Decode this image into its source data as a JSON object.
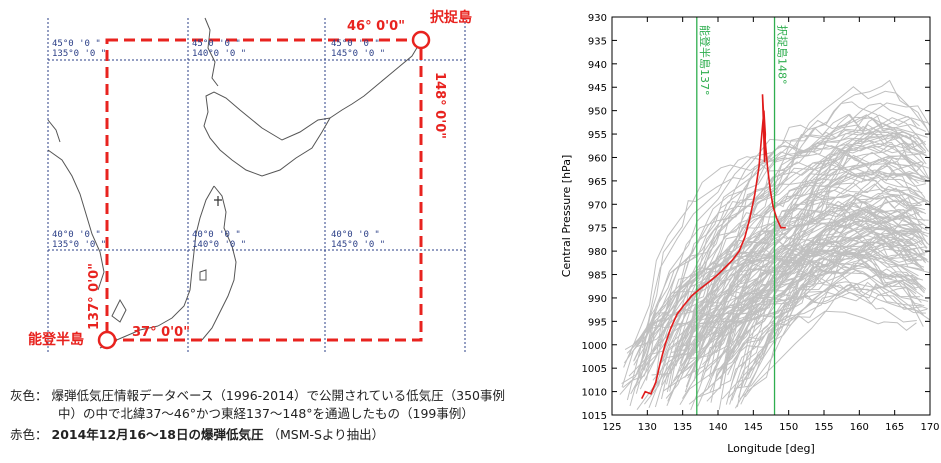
{
  "map": {
    "grid_labels": [
      {
        "lat": "45°0 '0 \"",
        "lon": "135°0 '0 \""
      },
      {
        "lat": "45°0 '0 \"",
        "lon": "140°0 '0 \""
      },
      {
        "lat": "45°0 '0 \"",
        "lon": "145°0 '0 \""
      },
      {
        "lat": "40°0 '0 \"",
        "lon": "135°0 '0 \""
      },
      {
        "lat": "40°0 '0 \"",
        "lon": "140°0 '0 \""
      },
      {
        "lat": "40°0 '0 \"",
        "lon": "145°0 '0 \""
      }
    ],
    "box_labels": {
      "north": "46°  0'0\"",
      "south": "37°  0'0\"",
      "east": "148°  0'0\"",
      "west": "137°  0'0\""
    },
    "places": {
      "ne": "択捉島",
      "sw": "能登半島"
    },
    "colors": {
      "box": "#e8231f",
      "grid": "#2b3f87",
      "coast": "#555555"
    }
  },
  "caption": {
    "line1_key": "灰色：",
    "line1": "爆弾低気圧情報データベース（1996-2014）で公開されている低気圧（350事例",
    "line2": "中）の中で北緯37～46°かつ東経137～148°を通過したもの（199事例）",
    "line3_key": "赤色：",
    "line3_bold": "2014年12月16～18日の爆弾低気圧",
    "line3_rest": "（MSM-Sより抽出）"
  },
  "chart_data": {
    "type": "line",
    "xlabel": "Longitude [deg]",
    "ylabel": "Central Pressure [hPa]",
    "xlim": [
      125,
      170
    ],
    "ylim": [
      930,
      1015
    ],
    "y_inverted": true,
    "xticks": [
      125,
      130,
      135,
      140,
      145,
      150,
      155,
      160,
      165,
      170
    ],
    "yticks": [
      930,
      935,
      940,
      945,
      950,
      955,
      960,
      965,
      970,
      975,
      980,
      985,
      990,
      995,
      1000,
      1005,
      1010,
      1015
    ],
    "vlines": [
      {
        "x": 137,
        "label": "能登半島137°"
      },
      {
        "x": 148,
        "label": "択捉島148°"
      }
    ],
    "colors": {
      "gray_tracks": "#c0c0c0",
      "red_track": "#e01b1b",
      "vline": "#2fae4f"
    },
    "red_track": {
      "x": [
        129.2,
        129.7,
        130.5,
        131.2,
        131.8,
        132.5,
        133.3,
        134.2,
        135.2,
        136.3,
        137.5,
        138.8,
        140.0,
        141.0,
        142.0,
        143.0,
        143.8,
        144.5,
        145.2,
        145.8,
        146.2,
        146.5,
        146.7,
        146.6,
        146.3,
        146.6,
        147.0,
        147.4,
        147.8,
        148.3,
        148.9,
        149.6
      ],
      "y": [
        1011.5,
        1010.0,
        1010.5,
        1008.0,
        1004.0,
        1000.0,
        996.5,
        993.5,
        991.5,
        989.5,
        988.0,
        986.5,
        985.0,
        983.5,
        982.0,
        980.0,
        977.0,
        973.0,
        968.0,
        962.0,
        955.0,
        950.0,
        955.0,
        961.0,
        946.5,
        955.0,
        962.0,
        967.0,
        970.5,
        973.0,
        975.0,
        975.0
      ]
    }
  }
}
